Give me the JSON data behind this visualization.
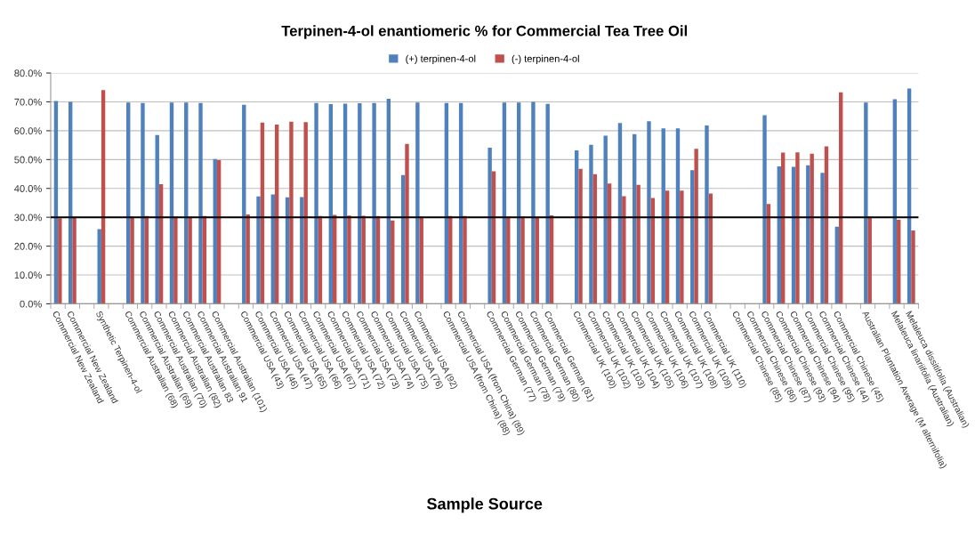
{
  "chart_data": {
    "type": "bar",
    "title": "Terpinen-4-ol enantiomeric % for Commercial Tea Tree Oil",
    "xlabel": "Sample Source",
    "categories": [
      "Commercial New Zealand",
      "Commercial New Zealand",
      null,
      "Synthetic Terpinen-4-ol",
      null,
      "Commercial Australian (68)",
      "Commercial Australian (69)",
      "Commercial Australian (70)",
      "Commercial Australian (82)",
      "Commercial Australian 83",
      "Commercial Australian 91",
      "Commercial Australian (101)",
      null,
      "Commercial USA (43)",
      "Commercial USA (46)",
      "Commercial USA (47)",
      "Commercial USA (65)",
      "Commercial USA (66)",
      "Commercial USA (67)",
      "Commercial USA (71)",
      "Commercial USA (72)",
      "Commercial USA (73)",
      "Commercial USA (74)",
      "Commercial USA (75)",
      "Commercial USA (76)",
      "Commercial USA (92)",
      null,
      "Commercial USA (from China) (88)",
      "Commercial USA (from China) (89)",
      null,
      "Commercial German (77)",
      "Commercial German (78)",
      "Commercial German (79)",
      "Commercial German (80)",
      "Commercial German (81)",
      null,
      "Commercial UK (100)",
      "Commercial UK (102)",
      "Commercial UK (103)",
      "Commercial UK (104)",
      "Commercial UK (105)",
      "Commercial UK (106)",
      "Commercial UK (107)",
      "Commercial UK (108)",
      "Commercial UK (109)",
      "Commercial UK (110)",
      null,
      "Commercial Chinese (85)",
      "Commercial Chinese (86)",
      "Commercial Chinese (87)",
      "Commercial Chinese (93)",
      "Commercial Chinese (94)",
      "Commercial Chinese (95)",
      "Commercial Chinese (44)",
      "Commercial Chinese (45)",
      null,
      "Australian Plantation Average (M alternifolia)",
      null,
      "Melaleuca linariifolia (Australian)",
      "Melaleuca dissitifolia (Australian)"
    ],
    "series": [
      {
        "name": "(+) terpinen-4-ol",
        "color": "#4f81bd",
        "values": [
          70.3,
          70.0,
          null,
          25.9,
          null,
          69.8,
          69.6,
          58.5,
          69.8,
          69.8,
          69.6,
          50.2,
          null,
          69.0,
          37.2,
          37.9,
          36.9,
          37.0,
          69.6,
          69.2,
          69.4,
          69.5,
          69.6,
          71.1,
          44.6,
          69.8,
          null,
          69.6,
          69.6,
          null,
          54.1,
          69.8,
          69.8,
          70.0,
          69.3,
          null,
          53.2,
          55.1,
          58.3,
          62.7,
          58.8,
          63.3,
          60.8,
          60.8,
          46.3,
          61.8,
          null,
          null,
          null,
          65.4,
          47.6,
          47.5,
          48.0,
          45.4,
          26.7,
          null,
          69.8,
          null,
          70.9,
          74.6
        ]
      },
      {
        "name": "(-) terpinen-4-ol",
        "color": "#c0504d",
        "values": [
          29.7,
          30.0,
          null,
          74.1,
          null,
          30.2,
          30.4,
          41.5,
          30.2,
          30.2,
          30.4,
          49.8,
          null,
          31.0,
          62.8,
          62.1,
          63.1,
          63.0,
          30.4,
          30.8,
          30.6,
          30.5,
          30.4,
          28.9,
          55.4,
          30.2,
          null,
          30.4,
          30.4,
          null,
          45.9,
          30.2,
          30.2,
          30.0,
          30.7,
          null,
          46.8,
          44.9,
          41.7,
          37.3,
          41.2,
          36.7,
          39.2,
          39.2,
          53.7,
          38.2,
          null,
          null,
          null,
          34.6,
          52.4,
          52.5,
          52.0,
          54.6,
          73.3,
          null,
          30.2,
          null,
          29.1,
          25.4
        ]
      }
    ],
    "ylim": [
      0,
      80
    ],
    "yticks": [
      {
        "value": 0,
        "label": "0.0%"
      },
      {
        "value": 10,
        "label": "10.0%"
      },
      {
        "value": 20,
        "label": "20.0%"
      },
      {
        "value": 30,
        "label": "30.0%"
      },
      {
        "value": 40,
        "label": "40.0%"
      },
      {
        "value": 50,
        "label": "50.0%"
      },
      {
        "value": 60,
        "label": "60.0%"
      },
      {
        "value": 70,
        "label": "70.0%"
      },
      {
        "value": 80,
        "label": "80.0%"
      }
    ],
    "ref_lines": [
      {
        "axis": "y",
        "value": 30,
        "color": "#000000"
      }
    ],
    "grid": "y",
    "legend": "top"
  }
}
